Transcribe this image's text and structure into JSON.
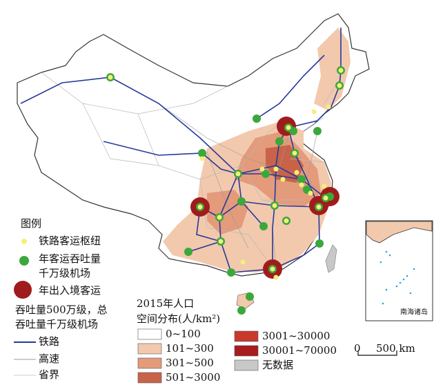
{
  "legend": {
    "title": "图例",
    "rail_hub": "铁路客运枢纽",
    "airport_line1": "年客运吞吐量",
    "airport_line2": "千万级机场",
    "intl_line1": "年出入境客运",
    "intl_line2": "吞吐量500万级，总",
    "intl_line3": "吞吐量千万级机场",
    "railway": "铁路",
    "highway": "高速",
    "border": "省界"
  },
  "population": {
    "title_line1": "2015年人口",
    "title_line2": "空间分布(人/km²)",
    "classes": [
      {
        "label": "0~100",
        "color": "#ffffff"
      },
      {
        "label": "101~300",
        "color": "#f2c9ad"
      },
      {
        "label": "301~500",
        "color": "#e39b7b"
      },
      {
        "label": "501~3000",
        "color": "#c8634a"
      },
      {
        "label": "3001~30000",
        "color": "#c8392c"
      },
      {
        "label": "30001~70000",
        "color": "#a81c1c"
      },
      {
        "label": "无数据",
        "color": "#c8c8c8"
      }
    ]
  },
  "scale": {
    "zero": "0",
    "label": "500 km"
  },
  "inset": {
    "label": "南海诸岛"
  }
}
